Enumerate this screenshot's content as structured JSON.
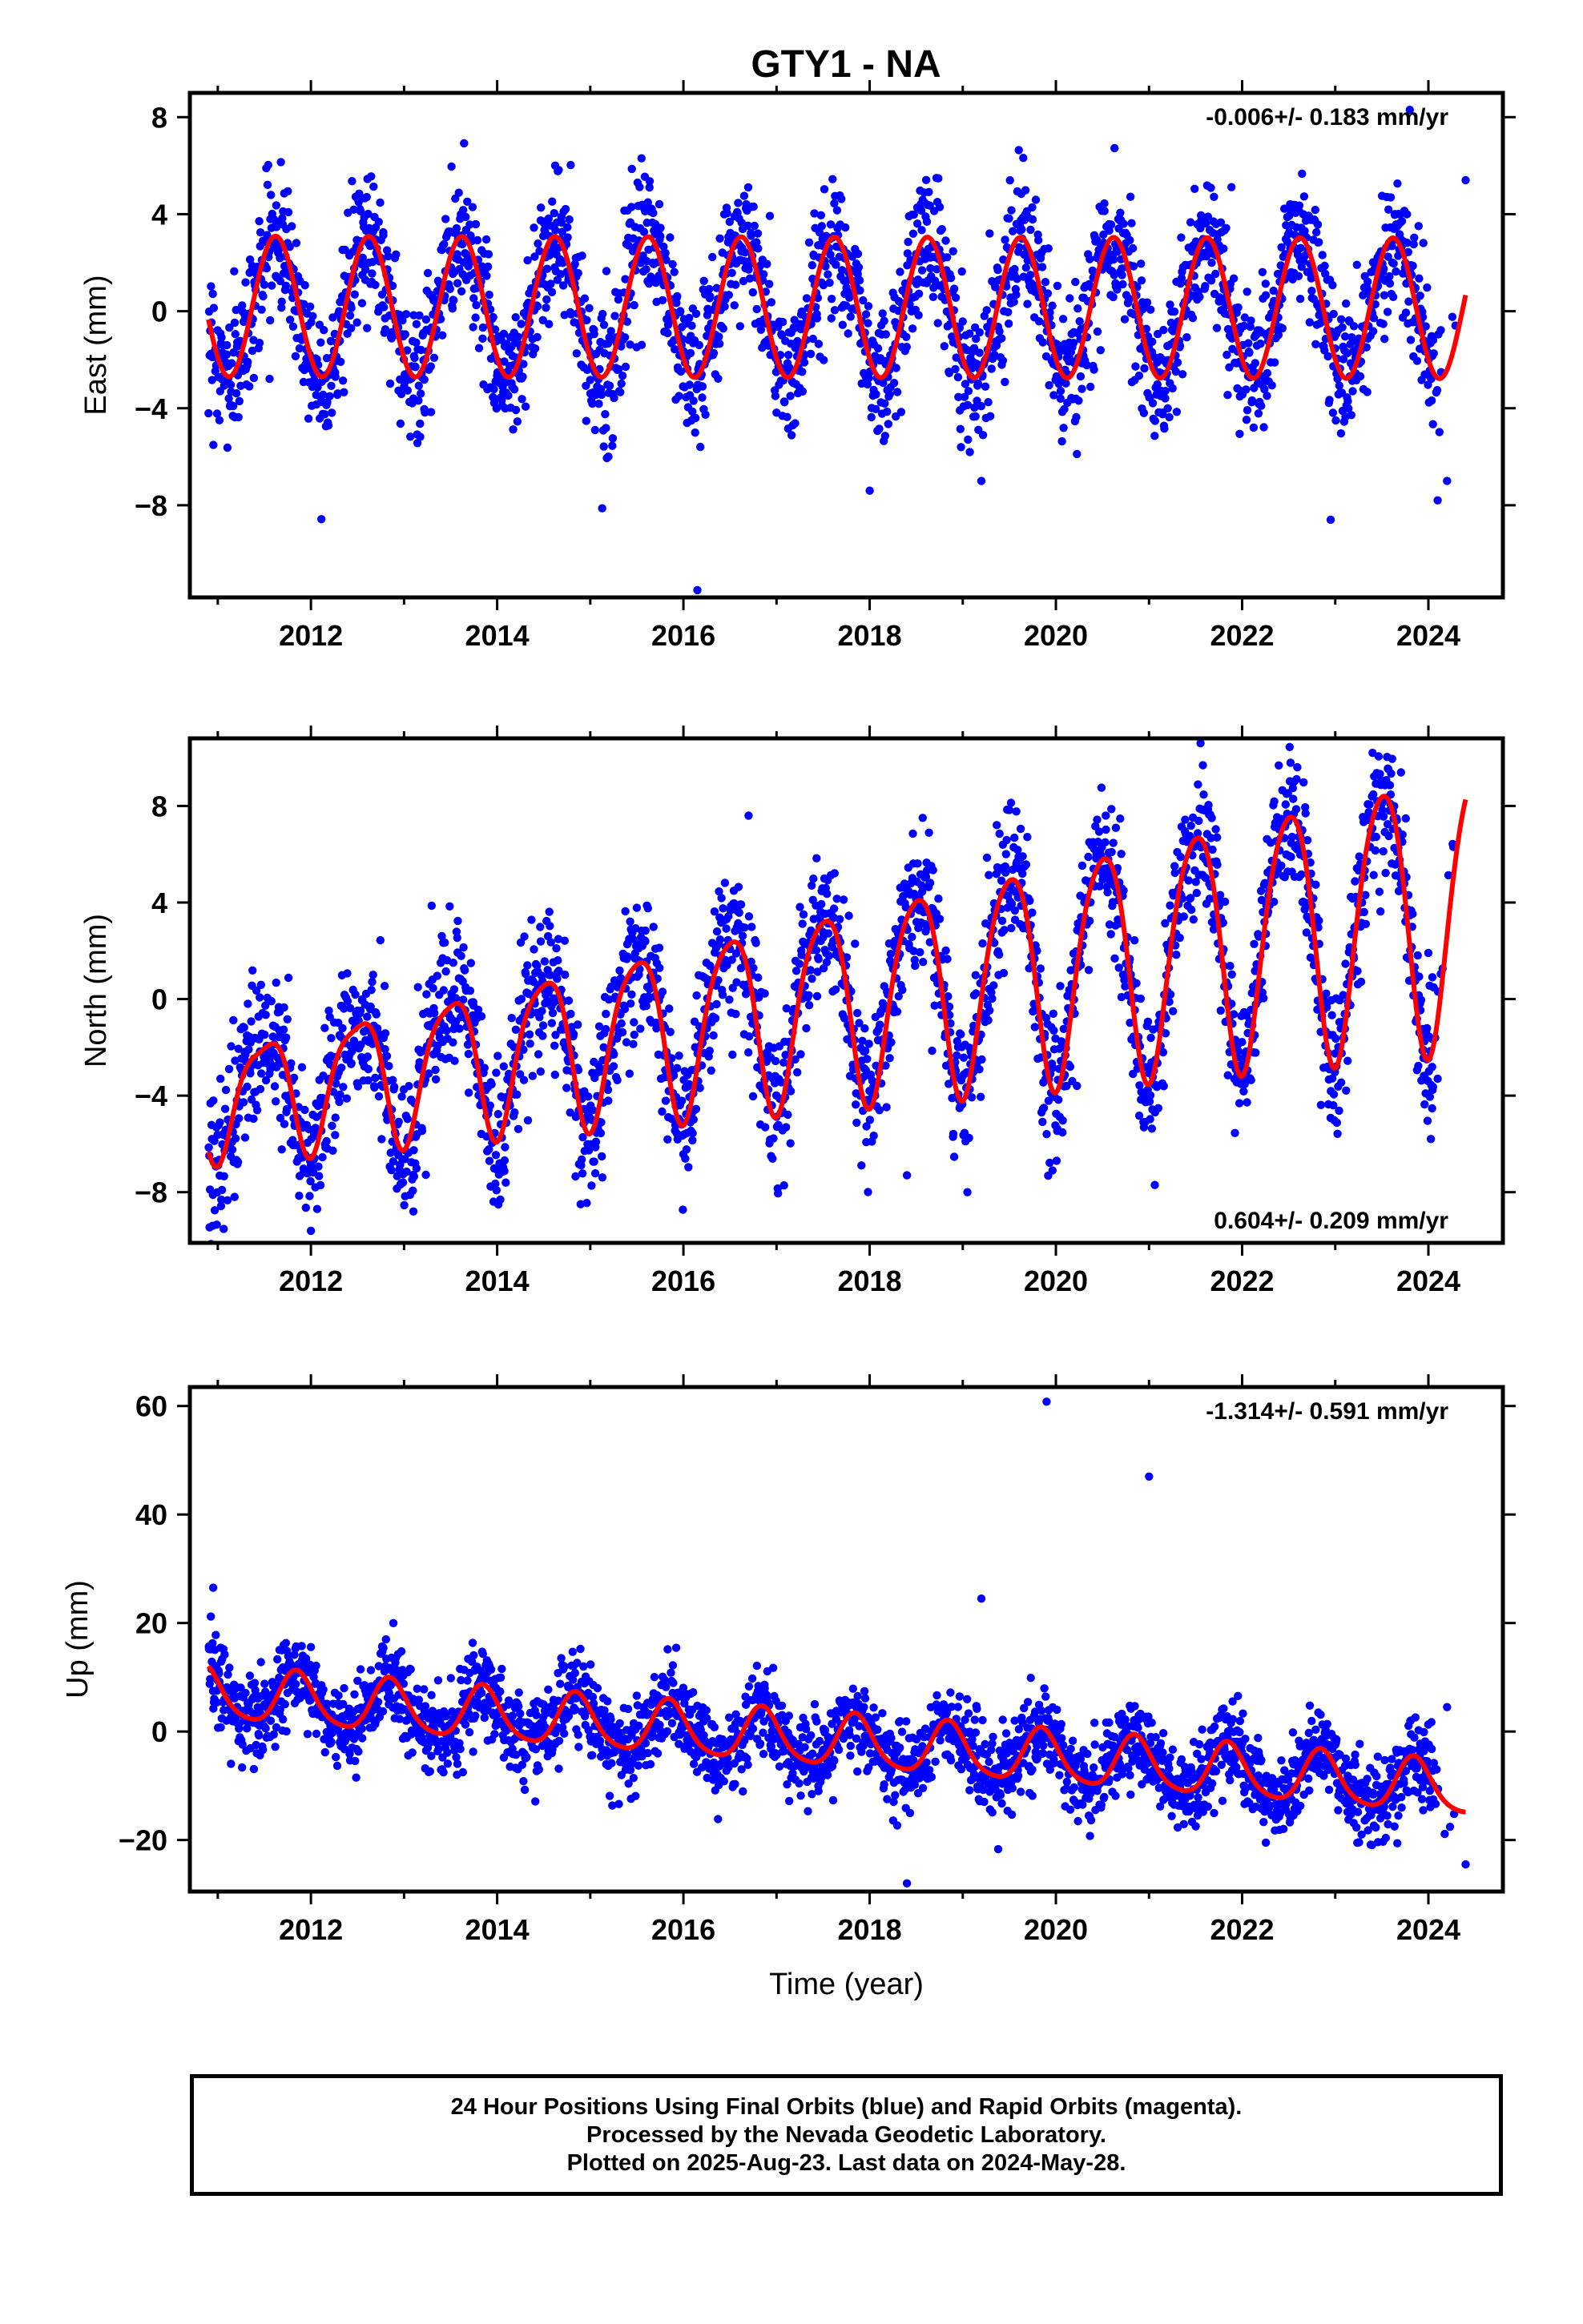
{
  "title": "GTY1 - NA",
  "footer": {
    "line1": "24 Hour Positions Using Final Orbits (blue) and Rapid Orbits (magenta).",
    "line2": "Processed by the Nevada Geodetic Laboratory.",
    "line3": "Plotted on 2025-Aug-23. Last data on 2024-May-28."
  },
  "colors": {
    "points": "#0000ff",
    "fit": "#ff0000",
    "axes": "#000000"
  },
  "chart_data": [
    {
      "type": "scatter",
      "ylabel": "East (mm)",
      "xlabel": "",
      "rate_label": "-0.006+/- 0.183 mm/yr",
      "rate_placement": "top-right",
      "xlim": [
        2010.7,
        2024.8
      ],
      "ylim": [
        -11.8,
        9.0
      ],
      "xticks": [
        2012,
        2014,
        2016,
        2018,
        2020,
        2022,
        2024
      ],
      "xtick_labels": [
        "2012",
        "2014",
        "2016",
        "2018",
        "2020",
        "2022",
        "2024"
      ],
      "yticks": [
        -8,
        -4,
        0,
        4,
        8
      ],
      "ytick_labels": [
        "−8",
        "−4",
        "0",
        "4",
        "8"
      ],
      "data_start": 2010.9,
      "data_end": 2024.41,
      "fit_end": 2024.4,
      "fit": {
        "offset": 0.2,
        "trend": -0.006,
        "annual_amp": 2.9,
        "annual_phase_year": 0.62,
        "semiannual_amp": 0.0,
        "semiannual_phase_year": 0.1
      },
      "scatter_sd": 1.4,
      "amp_growth": 0.0,
      "outliers": [
        [
          2016.15,
          -11.5
        ],
        [
          2019.2,
          -7.0
        ],
        [
          2022.95,
          -8.6
        ],
        [
          2024.2,
          -7.0
        ],
        [
          2024.1,
          -7.8
        ],
        [
          2024.4,
          5.4
        ],
        [
          2018.0,
          -7.4
        ],
        [
          2023.8,
          8.3
        ]
      ]
    },
    {
      "type": "scatter",
      "ylabel": "North (mm)",
      "xlabel": "",
      "rate_label": "0.604+/- 0.209 mm/yr",
      "rate_placement": "bottom-right",
      "xlim": [
        2010.7,
        2024.8
      ],
      "ylim": [
        -10.1,
        10.8
      ],
      "xticks": [
        2012,
        2014,
        2016,
        2018,
        2020,
        2022,
        2024
      ],
      "xtick_labels": [
        "2012",
        "2014",
        "2016",
        "2018",
        "2020",
        "2022",
        "2024"
      ],
      "yticks": [
        -8,
        -4,
        0,
        4,
        8
      ],
      "ytick_labels": [
        "−8",
        "−4",
        "0",
        "4",
        "8"
      ],
      "data_start": 2010.9,
      "data_end": 2024.41,
      "fit_end": 2024.4,
      "fit": {
        "offset": -4.2,
        "trend": 0.604,
        "annual_amp": 2.2,
        "annual_phase_year": 0.5,
        "semiannual_amp": 0.6,
        "semiannual_phase_year": 0.1
      },
      "scatter_sd": 1.5,
      "amp_growth": 0.12,
      "outliers": [
        [
          2016.7,
          7.6
        ],
        [
          2018.4,
          -7.3
        ],
        [
          2019.05,
          -8.0
        ],
        [
          2012.0,
          -9.6
        ],
        [
          2013.1,
          -8.8
        ],
        [
          2024.1,
          -3.3
        ],
        [
          2023.4,
          10.2
        ]
      ]
    },
    {
      "type": "scatter",
      "ylabel": "Up (mm)",
      "xlabel": "Time (year)",
      "rate_label": "-1.314+/- 0.591 mm/yr",
      "rate_placement": "top-right",
      "xlim": [
        2010.7,
        2024.8
      ],
      "ylim": [
        -29.5,
        63.5
      ],
      "xticks": [
        2012,
        2014,
        2016,
        2018,
        2020,
        2022,
        2024
      ],
      "xtick_labels": [
        "2012",
        "2014",
        "2016",
        "2018",
        "2020",
        "2022",
        "2024"
      ],
      "yticks": [
        -20,
        0,
        20,
        40,
        60
      ],
      "ytick_labels": [
        "−20",
        "0",
        "20",
        "40",
        "60"
      ],
      "data_start": 2010.9,
      "data_end": 2024.41,
      "fit_end": 2024.4,
      "fit": {
        "offset": 7.0,
        "trend": -1.314,
        "annual_amp": 4.8,
        "annual_phase_year": 0.85,
        "semiannual_amp": 0.8,
        "semiannual_phase_year": 0.2
      },
      "scatter_sd": 3.8,
      "amp_growth": 0.0,
      "outliers": [
        [
          2019.9,
          60.8
        ],
        [
          2021.0,
          47.0
        ],
        [
          2018.4,
          -28.0
        ],
        [
          2024.4,
          -24.5
        ],
        [
          2019.2,
          24.5
        ],
        [
          2010.95,
          26.5
        ],
        [
          2024.2,
          4.5
        ]
      ]
    }
  ]
}
